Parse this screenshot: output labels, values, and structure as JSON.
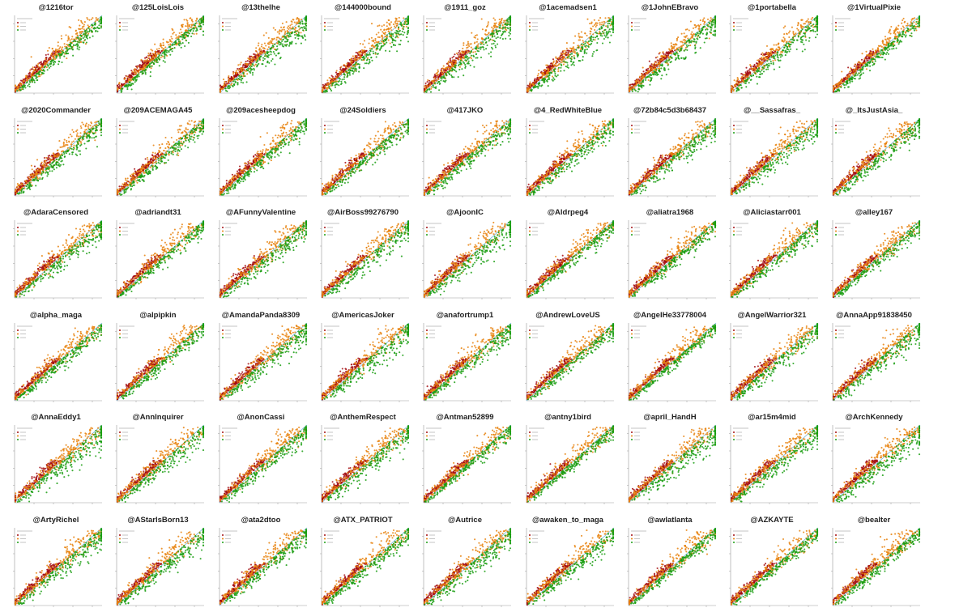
{
  "colors": {
    "dark_red": "#a30d12",
    "orange": "#e8820e",
    "green": "#1a9e12",
    "diagonal": "#6fb4d8",
    "axis": "#999999"
  },
  "chart_data": {
    "type": "scatter",
    "layout": "small-multiples",
    "grid": false,
    "legend_placement": "top-left",
    "panels": [
      {
        "title": "@1216tor"
      },
      {
        "title": "@125LoisLois"
      },
      {
        "title": "@13thelhe"
      },
      {
        "title": "@144000bound"
      },
      {
        "title": "@1911_goz"
      },
      {
        "title": "@1acemadsen1"
      },
      {
        "title": "@1JohnEBravo"
      },
      {
        "title": "@1portabella"
      },
      {
        "title": "@1VirtualPixie"
      },
      {
        "title": "@2020Commander"
      },
      {
        "title": "@209ACEMAGA45"
      },
      {
        "title": "@209acesheepdog"
      },
      {
        "title": "@24Soldiers"
      },
      {
        "title": "@417JKO"
      },
      {
        "title": "@4_RedWhiteBlue"
      },
      {
        "title": "@72b84c5d3b68437"
      },
      {
        "title": "@__Sassafras_"
      },
      {
        "title": "@_ItsJustAsia_"
      },
      {
        "title": "@AdaraCensored"
      },
      {
        "title": "@adriandt31"
      },
      {
        "title": "@AFunnyValentine"
      },
      {
        "title": "@AirBoss99276790"
      },
      {
        "title": "@AjoonIC"
      },
      {
        "title": "@Aldrpeg4"
      },
      {
        "title": "@aliatra1968"
      },
      {
        "title": "@Aliciastarr001"
      },
      {
        "title": "@alley167"
      },
      {
        "title": "@alpha_maga"
      },
      {
        "title": "@alpipkin"
      },
      {
        "title": "@AmandaPanda8309"
      },
      {
        "title": "@AmericasJoker"
      },
      {
        "title": "@anafortrump1"
      },
      {
        "title": "@AndrewLoveUS"
      },
      {
        "title": "@AngelHe33778004"
      },
      {
        "title": "@AngelWarrior321"
      },
      {
        "title": "@AnnaApp91838450"
      },
      {
        "title": "@AnnaEddy1"
      },
      {
        "title": "@AnnInquirer"
      },
      {
        "title": "@AnonCassi"
      },
      {
        "title": "@AnthemRespect"
      },
      {
        "title": "@Antman52899"
      },
      {
        "title": "@antny1bird"
      },
      {
        "title": "@april_HandH"
      },
      {
        "title": "@ar15m4mid"
      },
      {
        "title": "@ArchKennedy"
      },
      {
        "title": "@ArtyRichel"
      },
      {
        "title": "@AStarIsBorn13"
      },
      {
        "title": "@ata2dtoo"
      },
      {
        "title": "@ATX_PATRIOT"
      },
      {
        "title": "@Autrice"
      },
      {
        "title": "@awaken_to_maga"
      },
      {
        "title": "@awlatlanta"
      },
      {
        "title": "@AZKAYTE"
      },
      {
        "title": "@bealter"
      }
    ]
  }
}
